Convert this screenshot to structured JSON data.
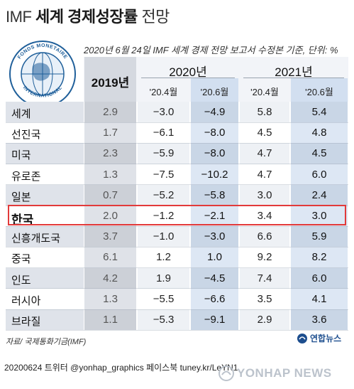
{
  "title": {
    "prefix": "IMF",
    "bold": "세계 경제성장률",
    "suffix": "전망"
  },
  "subtitle": "2020년 6월 24일 IMF 세계 경제 전망 보고서 수정본 기준, 단위: %",
  "logo": {
    "top_text": "FONDS MONETAIRE",
    "bottom_text": "INTERNATIONAL"
  },
  "source": "자료/ 국제통화기금(IMF)",
  "footer": "20200624  트위터 @yonhap_graphics  페이스북 tuney.kr/LeYN1",
  "brand_small": "연합뉴스",
  "brand_big": "YONHAP NEWS",
  "colors": {
    "col_gray": "#d5d9e0",
    "col_blue": "#d2dff0",
    "highlight_border": "#e23a3a",
    "header_bg": "#f2f4f8"
  },
  "chart_data": {
    "type": "table",
    "header_groups": [
      {
        "label": "2019년",
        "span": 1
      },
      {
        "label": "2020년",
        "span": 2
      },
      {
        "label": "2021년",
        "span": 2
      }
    ],
    "columns": [
      "2019년",
      "'20.4월",
      "'20.6월",
      "'20.4월",
      "'20.6월"
    ],
    "highlight_row": "한국",
    "rows": [
      {
        "name": "세계",
        "values": [
          "2.9",
          "−3.0",
          "−4.9",
          "5.8",
          "5.4"
        ]
      },
      {
        "name": "선진국",
        "values": [
          "1.7",
          "−6.1",
          "−8.0",
          "4.5",
          "4.8"
        ]
      },
      {
        "name": "미국",
        "values": [
          "2.3",
          "−5.9",
          "−8.0",
          "4.7",
          "4.5"
        ]
      },
      {
        "name": "유로존",
        "values": [
          "1.3",
          "−7.5",
          "−10.2",
          "4.7",
          "6.0"
        ]
      },
      {
        "name": "일본",
        "values": [
          "0.7",
          "−5.2",
          "−5.8",
          "3.0",
          "2.4"
        ]
      },
      {
        "name": "한국",
        "values": [
          "2.0",
          "−1.2",
          "−2.1",
          "3.4",
          "3.0"
        ]
      },
      {
        "name": "신흥개도국",
        "values": [
          "3.7",
          "−1.0",
          "−3.0",
          "6.6",
          "5.9"
        ]
      },
      {
        "name": "중국",
        "values": [
          "6.1",
          "1.2",
          "1.0",
          "9.2",
          "8.2"
        ]
      },
      {
        "name": "인도",
        "values": [
          "4.2",
          "1.9",
          "−4.5",
          "7.4",
          "6.0"
        ]
      },
      {
        "name": "러시아",
        "values": [
          "1.3",
          "−5.5",
          "−6.6",
          "3.5",
          "4.1"
        ]
      },
      {
        "name": "브라질",
        "values": [
          "1.1",
          "−5.3",
          "−9.1",
          "2.9",
          "3.6"
        ]
      }
    ]
  }
}
